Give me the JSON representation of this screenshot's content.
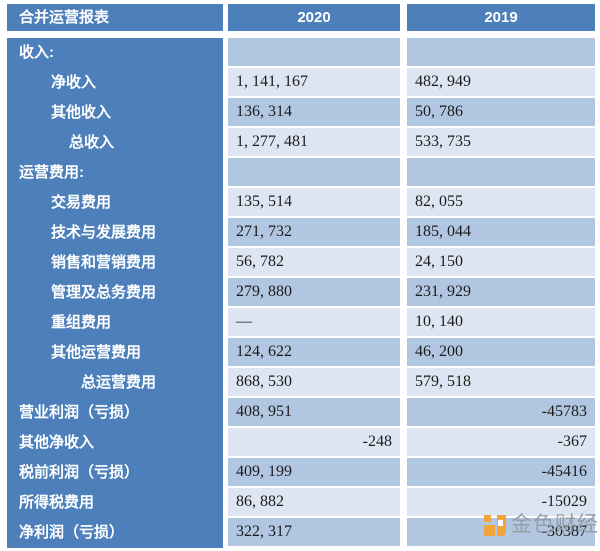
{
  "colors": {
    "header_blue": "#4d80bb",
    "band_dark": "#b1c6e0",
    "band_light": "#dce5f1",
    "watermark_orange": "#f2a33c",
    "watermark_gray": "#94999f"
  },
  "header": {
    "title": "合并运营报表",
    "columns": [
      "2020",
      "2019"
    ]
  },
  "chart_data": {
    "type": "table",
    "title": "合并运营报表",
    "columns": [
      "2020",
      "2019"
    ],
    "rows": [
      {
        "label": "收入:",
        "indent": 0,
        "v2020": "",
        "v2019": "",
        "a2020": "left",
        "a2019": "left"
      },
      {
        "label": "净收入",
        "indent": 1,
        "v2020": "1, 141, 167",
        "v2019": "482, 949",
        "a2020": "left",
        "a2019": "left"
      },
      {
        "label": "其他收入",
        "indent": 1,
        "v2020": "136, 314",
        "v2019": "50, 786",
        "a2020": "left",
        "a2019": "left"
      },
      {
        "label": "总收入",
        "indent": 2,
        "v2020": "1, 277, 481",
        "v2019": "533, 735",
        "a2020": "left",
        "a2019": "left"
      },
      {
        "label": "运营费用:",
        "indent": 0,
        "v2020": "",
        "v2019": "",
        "a2020": "left",
        "a2019": "left"
      },
      {
        "label": "交易费用",
        "indent": 1,
        "v2020": "135, 514",
        "v2019": "82, 055",
        "a2020": "left",
        "a2019": "left"
      },
      {
        "label": "技术与发展费用",
        "indent": 1,
        "v2020": "271, 732",
        "v2019": "185, 044",
        "a2020": "left",
        "a2019": "left"
      },
      {
        "label": "销售和营销费用",
        "indent": 1,
        "v2020": "56, 782",
        "v2019": "24, 150",
        "a2020": "left",
        "a2019": "left"
      },
      {
        "label": "管理及总务费用",
        "indent": 1,
        "v2020": "279, 880",
        "v2019": "231, 929",
        "a2020": "left",
        "a2019": "left"
      },
      {
        "label": "重组费用",
        "indent": 1,
        "v2020": "—",
        "v2019": "10, 140",
        "a2020": "left",
        "a2019": "left"
      },
      {
        "label": "其他运营费用",
        "indent": 1,
        "v2020": "124, 622",
        "v2019": "46, 200",
        "a2020": "left",
        "a2019": "left"
      },
      {
        "label": "总运营费用",
        "indent": 3,
        "v2020": "868, 530",
        "v2019": "579, 518",
        "a2020": "left",
        "a2019": "left"
      },
      {
        "label": "营业利润（亏损）",
        "indent": 0,
        "v2020": "408, 951",
        "v2019": "-45783",
        "a2020": "left",
        "a2019": "right"
      },
      {
        "label": "其他净收入",
        "indent": 0,
        "v2020": "-248",
        "v2019": "-367",
        "a2020": "right",
        "a2019": "right"
      },
      {
        "label": "税前利润（亏损）",
        "indent": 0,
        "v2020": "409, 199",
        "v2019": "-45416",
        "a2020": "left",
        "a2019": "right"
      },
      {
        "label": "所得税费用",
        "indent": 0,
        "v2020": "86, 882",
        "v2019": "-15029",
        "a2020": "left",
        "a2019": "right"
      },
      {
        "label": "净利润（亏损）",
        "indent": 0,
        "v2020": "322, 317",
        "v2019": "-30387",
        "a2020": "left",
        "a2019": "right"
      }
    ]
  },
  "watermark": {
    "text": "金色财经"
  }
}
